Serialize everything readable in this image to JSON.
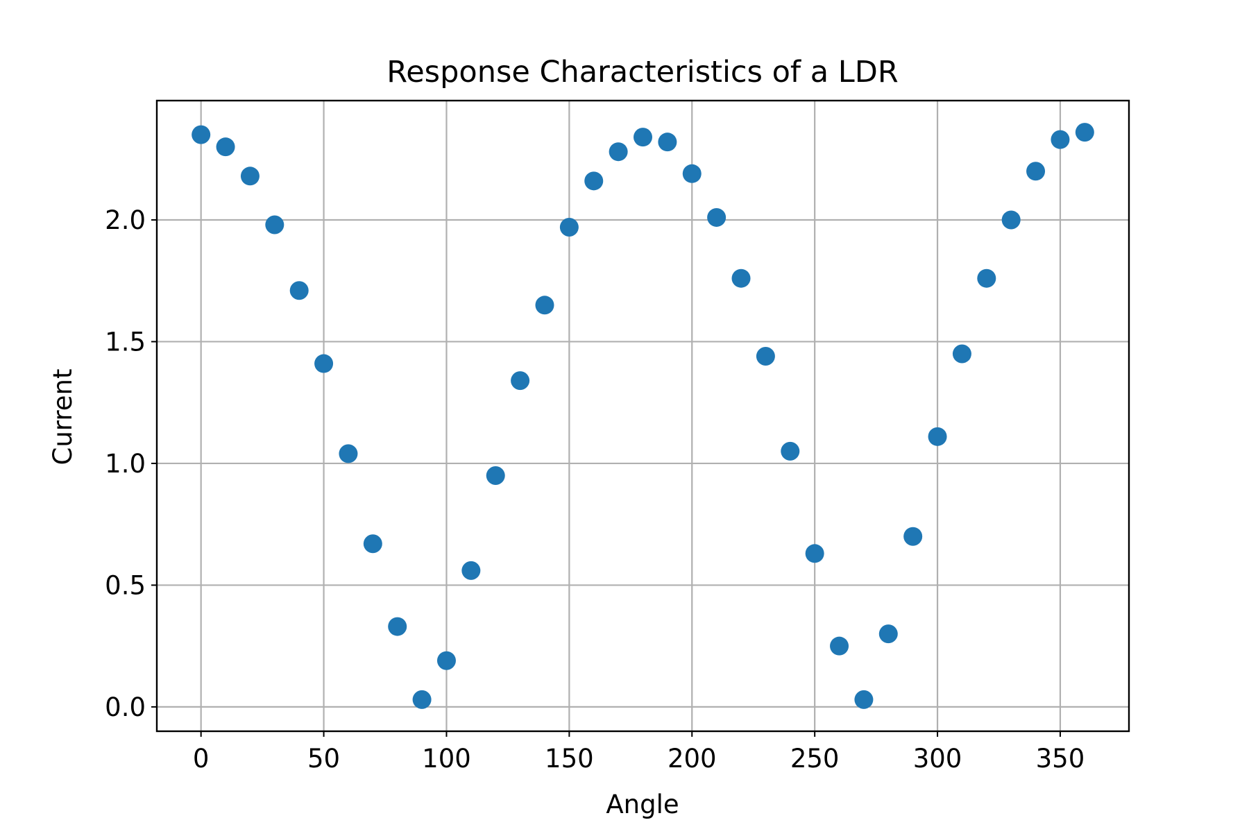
{
  "chart_data": {
    "type": "scatter",
    "title": "Response Characteristics of a LDR",
    "xlabel": "Angle",
    "ylabel": "Current",
    "xlim": [
      -18,
      378
    ],
    "ylim": [
      -0.1,
      2.49
    ],
    "xticks": [
      0,
      50,
      100,
      150,
      200,
      250,
      300,
      350
    ],
    "yticks": [
      0.0,
      0.5,
      1.0,
      1.5,
      2.0
    ],
    "xtick_labels": [
      "0",
      "50",
      "100",
      "150",
      "200",
      "250",
      "300",
      "350"
    ],
    "ytick_labels": [
      "0.0",
      "0.5",
      "1.0",
      "1.5",
      "2.0"
    ],
    "grid": true,
    "marker_color": "#1f77b4",
    "series": [
      {
        "x": [
          0,
          10,
          20,
          30,
          40,
          50,
          60,
          70,
          80,
          90,
          100,
          110,
          120,
          130,
          140,
          150,
          160,
          170,
          180,
          190,
          200,
          210,
          220,
          230,
          240,
          250,
          260,
          270,
          280,
          290,
          300,
          310,
          320,
          330,
          340,
          350,
          360
        ],
        "y": [
          2.35,
          2.3,
          2.18,
          1.98,
          1.71,
          1.41,
          1.04,
          0.67,
          0.33,
          0.03,
          0.19,
          0.56,
          0.95,
          1.34,
          1.65,
          1.97,
          2.16,
          2.28,
          2.34,
          2.32,
          2.19,
          2.01,
          1.76,
          1.44,
          1.05,
          0.63,
          0.25,
          0.03,
          0.3,
          0.7,
          1.11,
          1.45,
          1.76,
          2.0,
          2.2,
          2.33,
          2.36
        ]
      }
    ]
  }
}
